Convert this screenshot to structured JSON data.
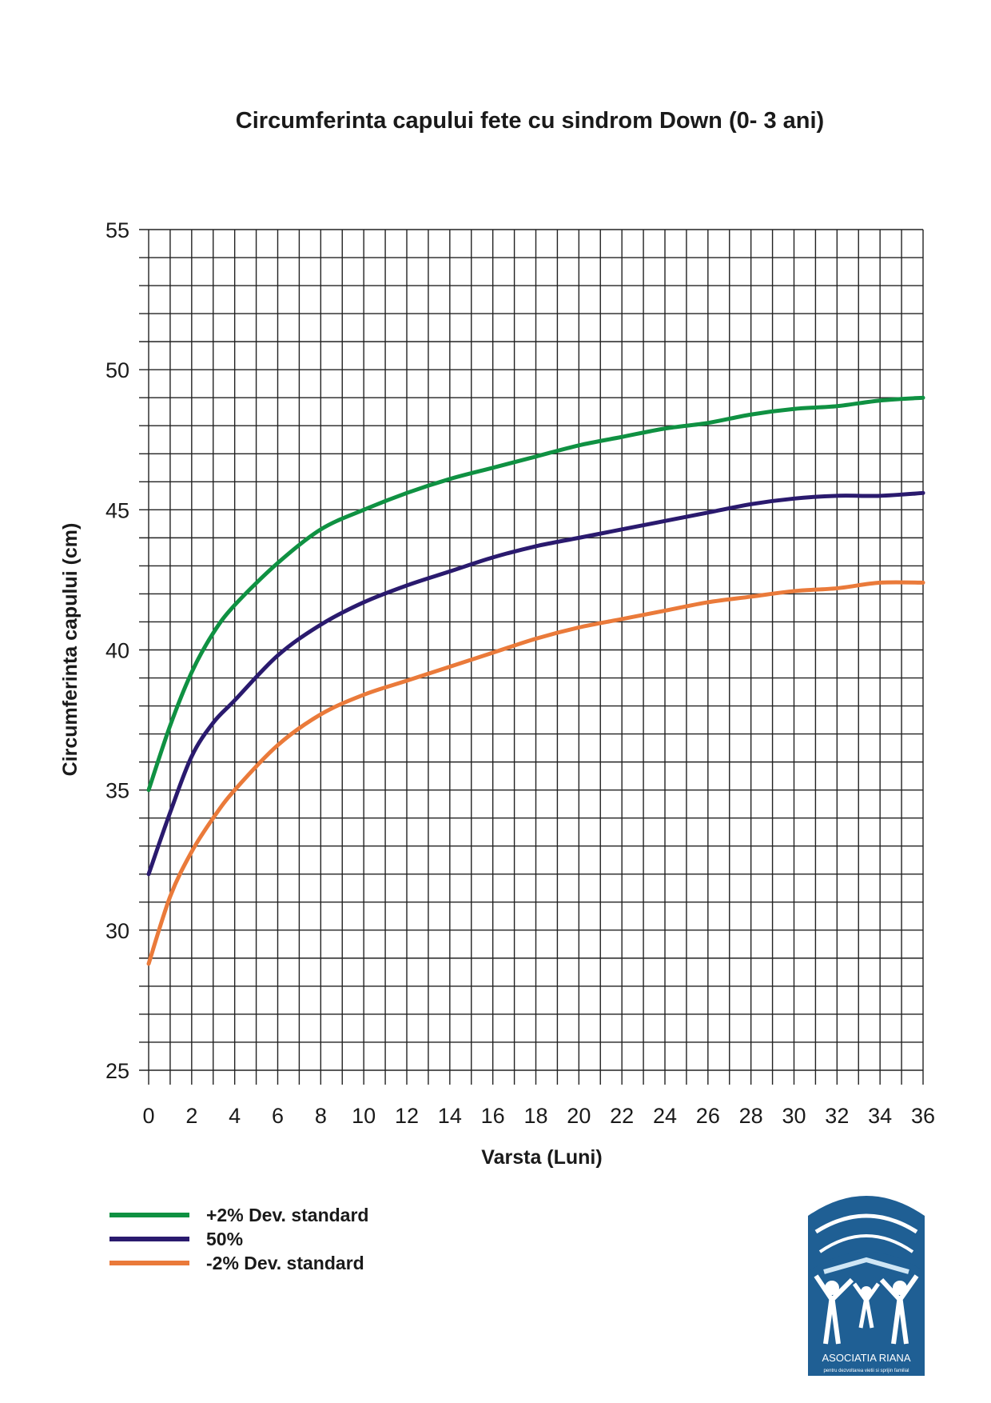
{
  "chart_data": {
    "type": "line",
    "title": "Circumferinta capului fete cu sindrom Down (0- 3 ani)",
    "xlabel": "Varsta (Luni)",
    "ylabel": "Circumferinta capului (cm)",
    "xlim": [
      0,
      36
    ],
    "ylim": [
      25,
      55
    ],
    "grid": true,
    "legend_position": "bottom-left",
    "x_ticks": [
      "0",
      "2",
      "4",
      "6",
      "8",
      "10",
      "12",
      "14",
      "16",
      "18",
      "20",
      "22",
      "24",
      "26",
      "28",
      "30",
      "32",
      "34",
      "36"
    ],
    "y_ticks": [
      "25",
      "30",
      "35",
      "40",
      "45",
      "50",
      "55"
    ],
    "x": [
      0,
      1,
      2,
      3,
      4,
      6,
      8,
      10,
      12,
      14,
      16,
      18,
      20,
      22,
      24,
      26,
      28,
      30,
      32,
      34,
      36
    ],
    "series": [
      {
        "name": "+2% Dev. standard",
        "color": "#0f9142",
        "values": [
          35,
          37.3,
          39.2,
          40.6,
          41.6,
          43.1,
          44.3,
          45,
          45.6,
          46.1,
          46.5,
          46.9,
          47.3,
          47.6,
          47.9,
          48.1,
          48.4,
          48.6,
          48.7,
          48.9,
          49.0
        ]
      },
      {
        "name": "50%",
        "color": "#2a1a6e",
        "values": [
          32,
          34.2,
          36.2,
          37.4,
          38.2,
          39.8,
          40.9,
          41.7,
          42.3,
          42.8,
          43.3,
          43.7,
          44.0,
          44.3,
          44.6,
          44.9,
          45.2,
          45.4,
          45.5,
          45.5,
          45.6
        ]
      },
      {
        "name": "-2% Dev. standard",
        "color": "#ea7a3a",
        "values": [
          28.8,
          31.2,
          32.8,
          34,
          35,
          36.6,
          37.7,
          38.4,
          38.9,
          39.4,
          39.9,
          40.4,
          40.8,
          41.1,
          41.4,
          41.7,
          41.9,
          42.1,
          42.2,
          42.4,
          42.4
        ]
      }
    ]
  },
  "logo": {
    "text": "ASOCIATIA RIANA",
    "subtext": "pentru dezvoltarea vietii si sprijin familial",
    "color": "#1f5f94"
  }
}
